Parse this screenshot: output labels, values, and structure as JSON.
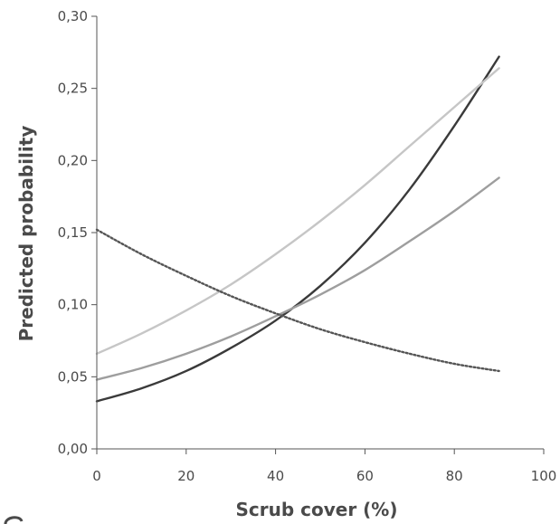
{
  "chart_data": {
    "type": "line",
    "xlabel": "Scrub cover (%)",
    "ylabel": "Predicted probability",
    "xlim": [
      0,
      100
    ],
    "ylim": [
      0,
      0.3
    ],
    "x_ticks": [
      0,
      20,
      40,
      60,
      80,
      100
    ],
    "y_ticks": [
      0,
      0.05,
      0.1,
      0.15,
      0.2,
      0.25,
      0.3
    ],
    "x_tick_labels": [
      "0",
      "20",
      "40",
      "60",
      "80",
      "100"
    ],
    "y_tick_labels": [
      "0,00",
      "0,05",
      "0,10",
      "0,15",
      "0,20",
      "0,25",
      "0,30"
    ],
    "x": [
      0,
      10,
      20,
      30,
      40,
      50,
      60,
      70,
      80,
      90
    ],
    "series": [
      {
        "color": "#3a3a3a",
        "style": "solid",
        "values": [
          0.033,
          0.042,
          0.054,
          0.07,
          0.089,
          0.113,
          0.143,
          0.18,
          0.224,
          0.272
        ]
      },
      {
        "color": "#c6c6c6",
        "style": "solid",
        "values": [
          0.066,
          0.08,
          0.096,
          0.114,
          0.135,
          0.158,
          0.183,
          0.21,
          0.237,
          0.264
        ]
      },
      {
        "color": "#9e9e9e",
        "style": "solid",
        "values": [
          0.048,
          0.056,
          0.066,
          0.078,
          0.092,
          0.107,
          0.124,
          0.144,
          0.165,
          0.188
        ]
      },
      {
        "color": "#555555",
        "style": "dotted",
        "values": [
          0.152,
          0.135,
          0.12,
          0.106,
          0.094,
          0.083,
          0.074,
          0.066,
          0.059,
          0.054
        ]
      }
    ]
  }
}
